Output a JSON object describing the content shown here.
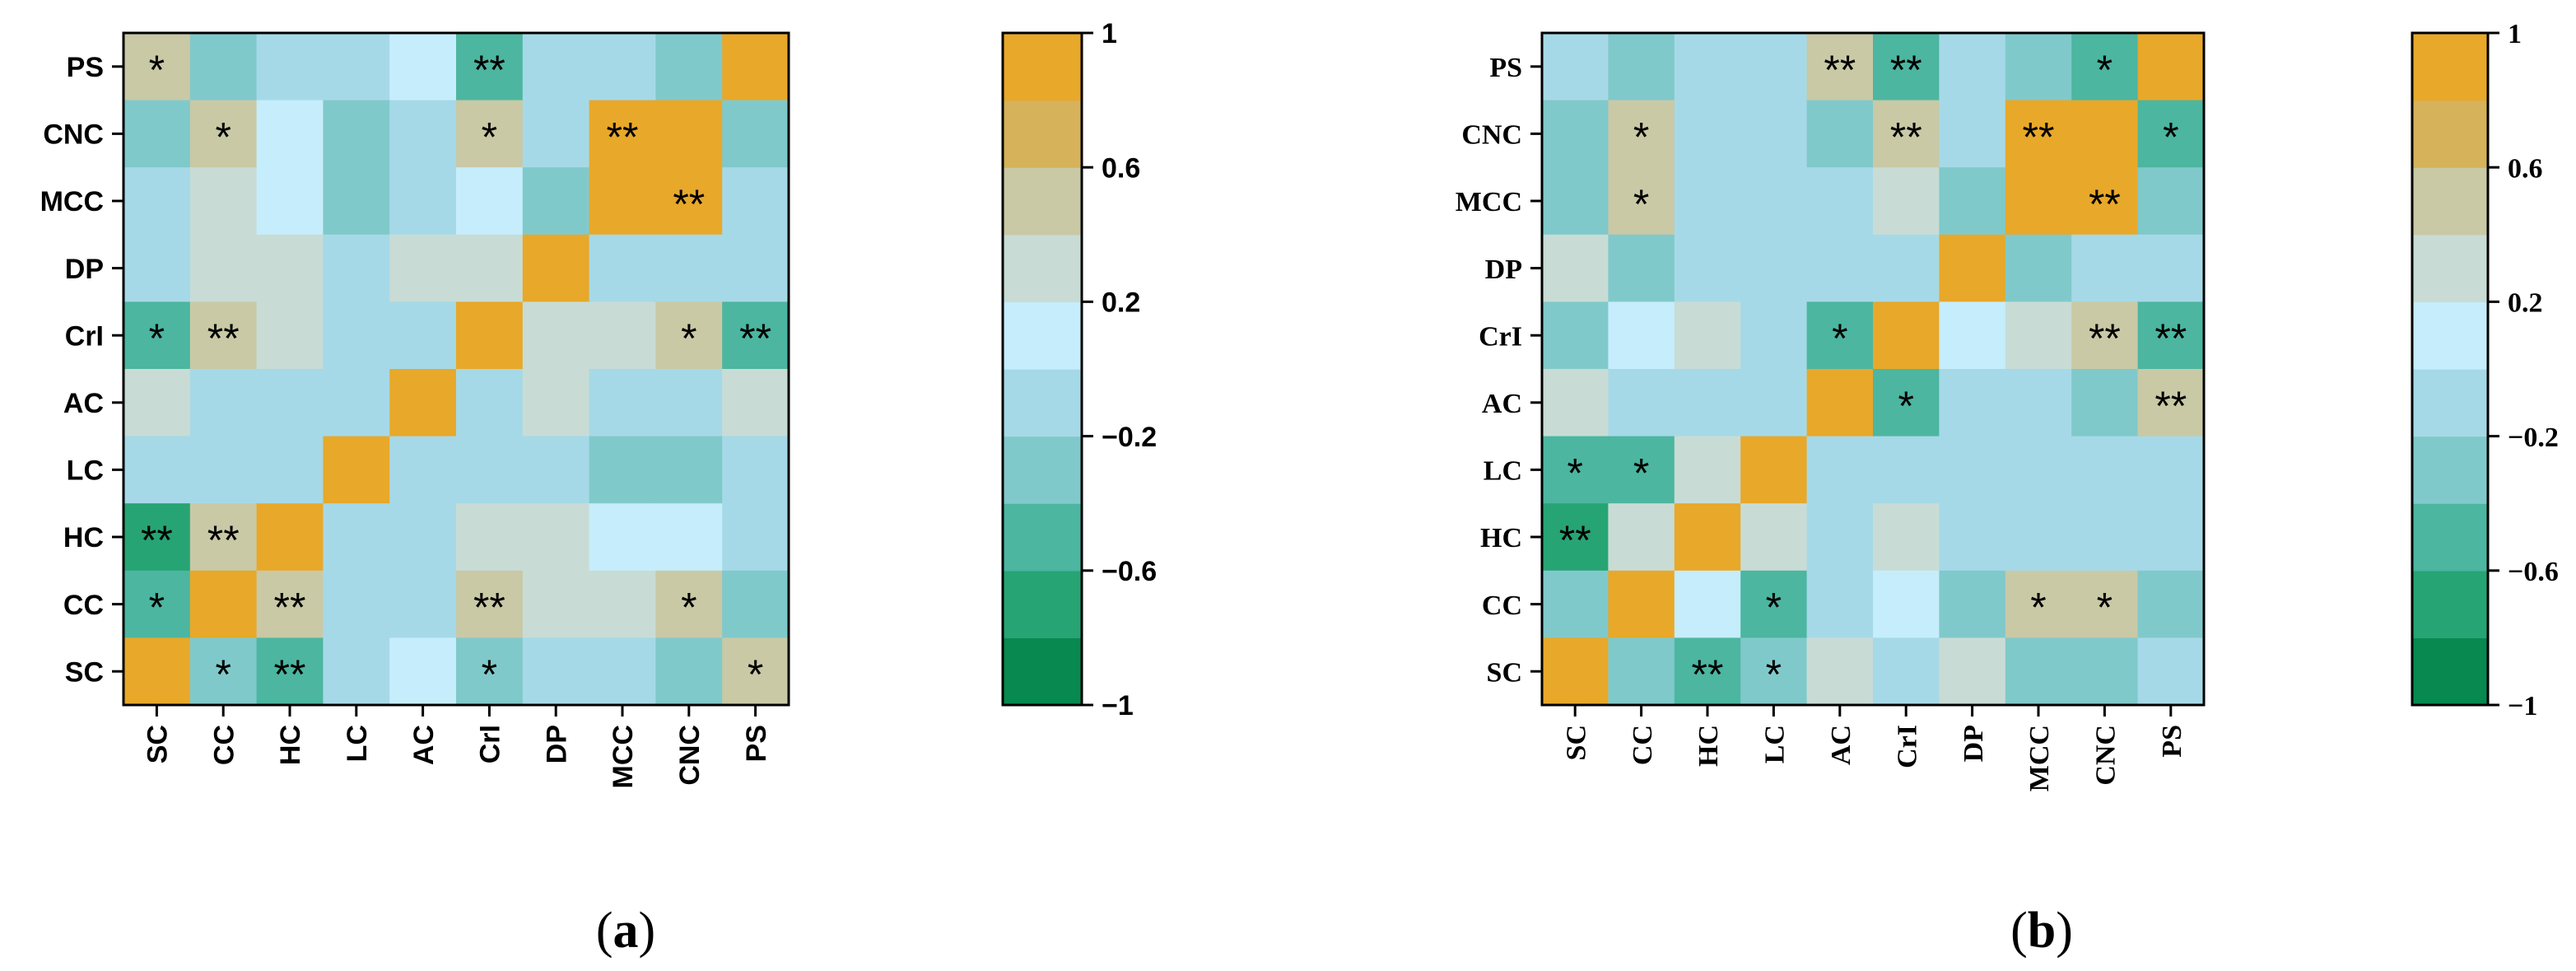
{
  "figure": {
    "label_a": "a",
    "label_b": "b",
    "label_open": "(",
    "label_close": ")"
  },
  "colors": {
    "scale": [
      "#07894F",
      "#27A474",
      "#4CB6A0",
      "#80C9CB",
      "#A6D9E7",
      "#C6EDFB",
      "#C8DCD5",
      "#C9C9A6",
      "#D6B25A",
      "#E8A82A"
    ],
    "text": "#000000",
    "frame": "#000000"
  },
  "chart_data": [
    {
      "type": "heatmap",
      "panel": "a",
      "font": "sans",
      "x_categories": [
        "SC",
        "CC",
        "HC",
        "LC",
        "AC",
        "CrI",
        "DP",
        "MCC",
        "CNC",
        "PS"
      ],
      "y_categories": [
        "PS",
        "CNC",
        "MCC",
        "DP",
        "CrI",
        "AC",
        "LC",
        "HC",
        "CC",
        "SC"
      ],
      "values": [
        [
          0.4,
          -0.25,
          -0.12,
          -0.15,
          0.18,
          -0.55,
          -0.05,
          -0.15,
          -0.35,
          1.0
        ],
        [
          -0.25,
          0.45,
          0.15,
          -0.25,
          -0.2,
          0.45,
          -0.1,
          1.0,
          1.0,
          -0.35
        ],
        [
          -0.15,
          0.35,
          0.15,
          -0.25,
          -0.2,
          0.18,
          -0.25,
          1.0,
          1.0,
          -0.15
        ],
        [
          -0.2,
          0.25,
          0.3,
          -0.15,
          0.25,
          0.3,
          1.0,
          -0.2,
          -0.1,
          -0.05
        ],
        [
          -0.5,
          0.45,
          0.2,
          -0.15,
          -0.1,
          1.0,
          0.3,
          0.2,
          0.4,
          -0.45
        ],
        [
          0.2,
          -0.15,
          -0.15,
          -0.15,
          1.0,
          -0.1,
          0.25,
          -0.2,
          -0.2,
          0.2
        ],
        [
          -0.05,
          -0.05,
          -0.2,
          1.0,
          -0.18,
          -0.18,
          -0.18,
          -0.25,
          -0.25,
          -0.2
        ],
        [
          -0.65,
          0.45,
          1.0,
          -0.18,
          -0.18,
          0.22,
          0.3,
          0.18,
          0.18,
          -0.15
        ],
        [
          -0.5,
          1.0,
          0.45,
          -0.08,
          -0.15,
          0.45,
          0.22,
          0.35,
          0.4,
          -0.25
        ],
        [
          1.0,
          -0.4,
          -0.55,
          -0.08,
          0.18,
          -0.4,
          -0.2,
          -0.2,
          -0.25,
          0.4
        ]
      ],
      "significance": [
        [
          "*",
          "",
          "",
          "",
          "",
          "**",
          "",
          "",
          "",
          ""
        ],
        [
          "",
          "*",
          "",
          "",
          "",
          "*",
          "",
          "**",
          "",
          ""
        ],
        [
          "",
          "",
          "",
          "",
          "",
          "",
          "",
          "",
          "**",
          ""
        ],
        [
          "",
          "",
          "",
          "",
          "",
          "",
          "",
          "",
          "",
          ""
        ],
        [
          "*",
          "**",
          "",
          "",
          "",
          "",
          "",
          "",
          "*",
          "**"
        ],
        [
          "",
          "",
          "",
          "",
          "",
          "",
          "",
          "",
          "",
          ""
        ],
        [
          "",
          "",
          "",
          "",
          "",
          "",
          "",
          "",
          "",
          ""
        ],
        [
          "**",
          "**",
          "",
          "",
          "",
          "",
          "",
          "",
          "",
          ""
        ],
        [
          "*",
          "",
          "**",
          "",
          "",
          "**",
          "",
          "",
          "*",
          ""
        ],
        [
          "",
          "*",
          "**",
          "",
          "",
          "*",
          "",
          "",
          "",
          "*"
        ]
      ],
      "colorbar": {
        "range": [
          -1,
          1
        ],
        "ticks": [
          1,
          0.6,
          0.2,
          -0.2,
          -0.6,
          -1
        ],
        "tick_labels": [
          "1",
          "0.6",
          "0.2",
          "−0.2",
          "−0.6",
          "−1"
        ]
      }
    },
    {
      "type": "heatmap",
      "panel": "b",
      "font": "serif",
      "x_categories": [
        "SC",
        "CC",
        "HC",
        "LC",
        "AC",
        "CrI",
        "DP",
        "MCC",
        "CNC",
        "PS"
      ],
      "y_categories": [
        "PS",
        "CNC",
        "MCC",
        "DP",
        "CrI",
        "AC",
        "LC",
        "HC",
        "CC",
        "SC"
      ],
      "values": [
        [
          -0.15,
          -0.25,
          -0.12,
          -0.05,
          0.4,
          -0.55,
          -0.2,
          -0.3,
          -0.5,
          1.0
        ],
        [
          -0.3,
          0.45,
          -0.15,
          -0.15,
          -0.3,
          0.55,
          -0.2,
          1.0,
          1.0,
          -0.5
        ],
        [
          -0.3,
          0.45,
          -0.05,
          -0.15,
          -0.15,
          0.25,
          -0.25,
          1.0,
          1.0,
          -0.3
        ],
        [
          0.2,
          -0.25,
          -0.12,
          -0.05,
          -0.12,
          -0.12,
          1.0,
          -0.25,
          -0.15,
          -0.15
        ],
        [
          -0.25,
          0.18,
          0.25,
          -0.05,
          -0.5,
          1.0,
          0.18,
          0.25,
          0.4,
          -0.55
        ],
        [
          0.3,
          -0.15,
          -0.2,
          -0.2,
          1.0,
          -0.55,
          -0.12,
          -0.15,
          -0.3,
          0.45
        ],
        [
          -0.45,
          -0.45,
          0.3,
          1.0,
          -0.2,
          -0.08,
          -0.08,
          -0.15,
          -0.15,
          -0.12
        ],
        [
          -0.7,
          0.2,
          1.0,
          0.3,
          -0.2,
          0.25,
          -0.12,
          -0.1,
          -0.12,
          -0.12
        ],
        [
          -0.25,
          1.0,
          0.18,
          -0.45,
          -0.12,
          0.18,
          -0.25,
          0.4,
          0.4,
          -0.25
        ],
        [
          1.0,
          -0.25,
          -0.6,
          -0.4,
          0.3,
          -0.2,
          0.3,
          -0.25,
          -0.25,
          -0.12
        ]
      ],
      "significance": [
        [
          "",
          "",
          "",
          "",
          "**",
          "**",
          "",
          "",
          "*",
          ""
        ],
        [
          "",
          "*",
          "",
          "",
          "",
          "**",
          "",
          "**",
          "",
          "*"
        ],
        [
          "",
          "*",
          "",
          "",
          "",
          "",
          "",
          "",
          "**",
          ""
        ],
        [
          "",
          "",
          "",
          "",
          "",
          "",
          "",
          "",
          "",
          ""
        ],
        [
          "",
          "",
          "",
          "",
          "*",
          "",
          "",
          "",
          "**",
          "**"
        ],
        [
          "",
          "",
          "",
          "",
          "",
          "*",
          "",
          "",
          "",
          "**"
        ],
        [
          "*",
          "*",
          "",
          "",
          "",
          "",
          "",
          "",
          "",
          ""
        ],
        [
          "**",
          "",
          "",
          "",
          "",
          "",
          "",
          "",
          "",
          ""
        ],
        [
          "",
          "",
          "",
          "*",
          "",
          "",
          "",
          "*",
          "*",
          ""
        ],
        [
          "",
          "",
          "**",
          "*",
          "",
          "",
          "",
          "",
          "",
          ""
        ]
      ],
      "colorbar": {
        "range": [
          -1,
          1
        ],
        "ticks": [
          1,
          0.6,
          0.2,
          -0.2,
          -0.6,
          -1
        ],
        "tick_labels": [
          "1",
          "0.6",
          "0.2",
          "−0.2",
          "−0.6",
          "−1"
        ]
      }
    }
  ]
}
